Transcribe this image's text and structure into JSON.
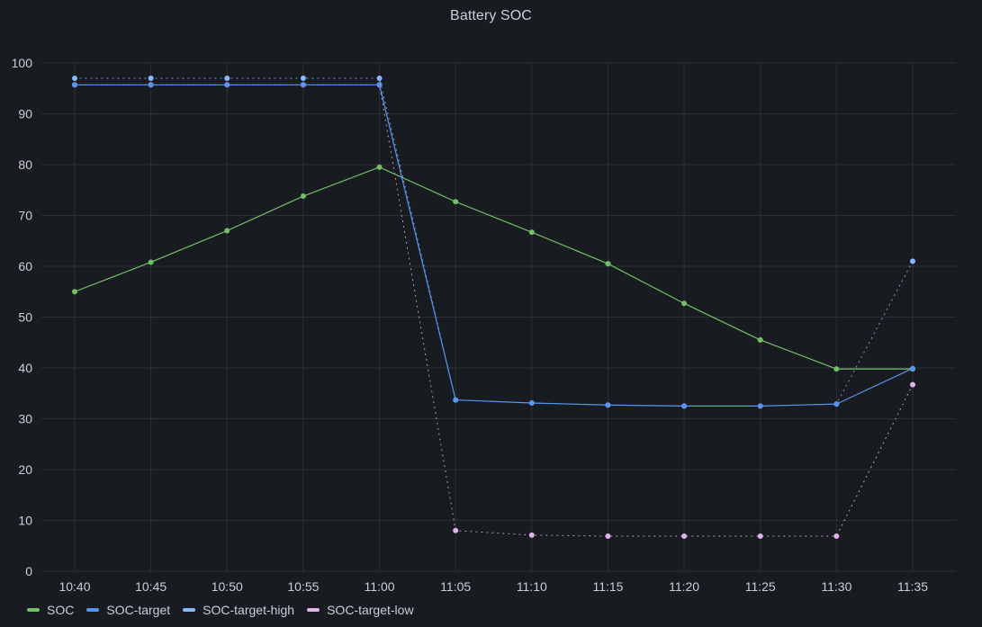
{
  "panel": {
    "title": "Battery SOC"
  },
  "chart_data": {
    "type": "line",
    "title": "Battery SOC",
    "xlabel": "",
    "ylabel": "",
    "x": [
      "10:40",
      "10:45",
      "10:50",
      "10:55",
      "11:00",
      "11:05",
      "11:10",
      "11:15",
      "11:20",
      "11:25",
      "11:30",
      "11:35"
    ],
    "ylim": [
      0,
      100
    ],
    "yticks": [
      0,
      10,
      20,
      30,
      40,
      50,
      60,
      70,
      80,
      90,
      100
    ],
    "grid": true,
    "legend_position": "bottom-left",
    "series": [
      {
        "name": "SOC",
        "color": "#73bf69",
        "style": "solid",
        "values": [
          55,
          60.8,
          67,
          73.8,
          79.5,
          72.7,
          66.7,
          60.5,
          52.7,
          45.5,
          39.8,
          39.8
        ]
      },
      {
        "name": "SOC-target",
        "color": "#5794f2",
        "style": "solid",
        "values": [
          95.7,
          95.7,
          95.7,
          95.7,
          95.7,
          33.7,
          33.1,
          32.7,
          32.5,
          32.5,
          32.9,
          39.9
        ]
      },
      {
        "name": "SOC-target-high",
        "color": "#8ab8ff",
        "style": "dotted",
        "values": [
          97,
          97,
          97,
          97,
          97,
          33.7,
          33.1,
          32.7,
          32.5,
          32.5,
          32.9,
          61
        ]
      },
      {
        "name": "SOC-target-low",
        "color": "#e0b3ef",
        "style": "dotted",
        "values": [
          95.7,
          95.7,
          95.7,
          95.7,
          95.7,
          8,
          7.1,
          6.9,
          6.9,
          6.9,
          6.9,
          36.7
        ]
      }
    ]
  }
}
